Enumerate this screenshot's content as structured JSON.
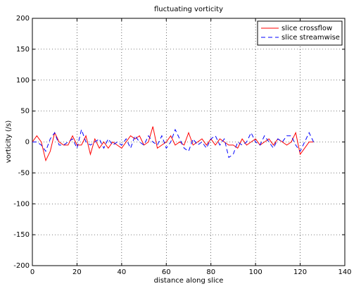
{
  "chart_data": {
    "type": "line",
    "title": "fluctuating vorticity",
    "xlabel": "distance along slice",
    "ylabel": "vorticity (/s)",
    "x": [
      0,
      2,
      4,
      6,
      8,
      10,
      12,
      14,
      16,
      18,
      20,
      22,
      24,
      26,
      28,
      30,
      32,
      34,
      36,
      38,
      40,
      42,
      44,
      46,
      48,
      50,
      52,
      54,
      56,
      58,
      60,
      62,
      64,
      66,
      68,
      70,
      72,
      74,
      76,
      78,
      80,
      82,
      84,
      86,
      88,
      90,
      92,
      94,
      96,
      98,
      100,
      102,
      104,
      106,
      108,
      110,
      112,
      114,
      116,
      118,
      120,
      122,
      124,
      126
    ],
    "series": [
      {
        "name": "slice crossflow",
        "color": "#ff0000",
        "dash": "solid",
        "values": [
          0,
          10,
          0,
          -30,
          -15,
          15,
          0,
          -5,
          -5,
          10,
          -5,
          -5,
          10,
          -20,
          5,
          -10,
          0,
          -10,
          0,
          -5,
          -10,
          0,
          10,
          5,
          10,
          -5,
          0,
          25,
          -10,
          -5,
          0,
          10,
          -5,
          0,
          -5,
          15,
          -5,
          0,
          5,
          -5,
          5,
          -5,
          5,
          0,
          -5,
          -5,
          -10,
          5,
          -5,
          0,
          5,
          -5,
          0,
          5,
          -5,
          5,
          0,
          -5,
          0,
          15,
          -20,
          -10,
          0,
          0
        ]
      },
      {
        "name": "slice streamwise",
        "color": "#0000ff",
        "dash": "dashed",
        "values": [
          0,
          0,
          -5,
          -15,
          5,
          15,
          -5,
          -5,
          0,
          5,
          -10,
          20,
          0,
          -5,
          0,
          5,
          -10,
          5,
          -5,
          0,
          -5,
          5,
          -10,
          10,
          0,
          -5,
          10,
          0,
          -5,
          10,
          -10,
          0,
          20,
          5,
          -10,
          -15,
          5,
          -5,
          0,
          -10,
          5,
          10,
          -5,
          5,
          -25,
          -20,
          0,
          -5,
          0,
          15,
          0,
          -5,
          10,
          0,
          -10,
          5,
          0,
          10,
          10,
          -5,
          -15,
          0,
          15,
          0
        ]
      }
    ],
    "xlim": [
      0,
      140
    ],
    "xticks": [
      0,
      20,
      40,
      60,
      80,
      100,
      120,
      140
    ],
    "ylim": [
      -200,
      200
    ],
    "yticks": [
      -200,
      -150,
      -100,
      -50,
      0,
      50,
      100,
      150,
      200
    ],
    "grid": true,
    "legend": "northeast"
  }
}
